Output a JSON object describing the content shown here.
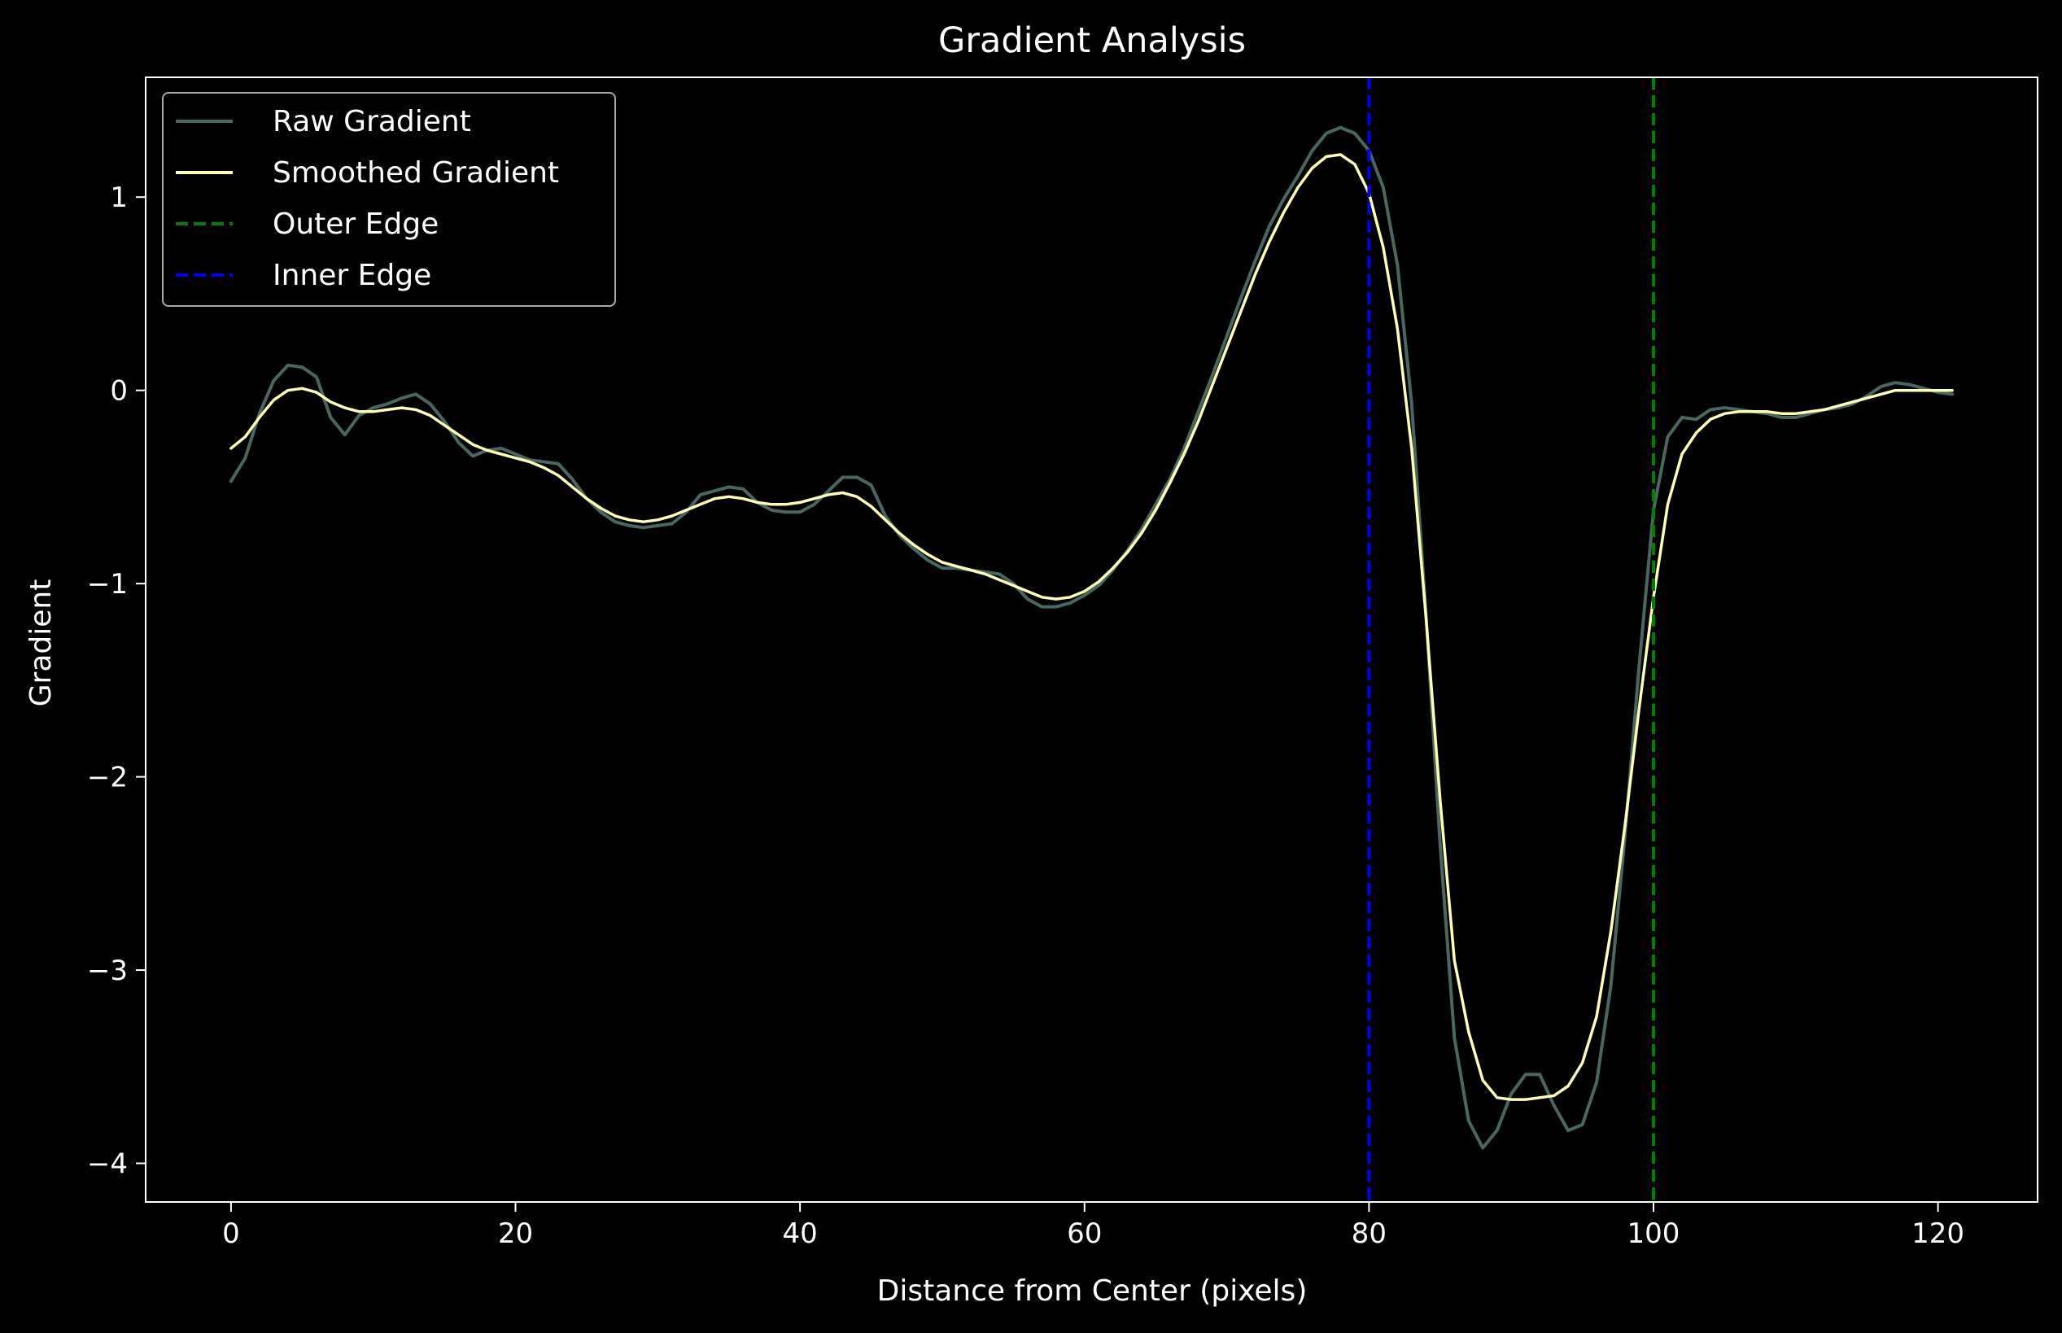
{
  "chart_data": {
    "type": "line",
    "title": "Gradient Analysis",
    "xlabel": "Distance from Center (pixels)",
    "ylabel": "Gradient",
    "xlim": [
      -6,
      127
    ],
    "ylim": [
      -4.2,
      1.62
    ],
    "xticks": [
      0,
      20,
      40,
      60,
      80,
      100,
      120
    ],
    "yticks": [
      1,
      0,
      -1,
      -2,
      -3,
      -4
    ],
    "ytick_labels": [
      "1",
      "0",
      "−1",
      "−2",
      "−3",
      "−4"
    ],
    "grid": false,
    "legend_position": "top-left",
    "background_color": "#000000",
    "x": [
      0,
      1,
      2,
      3,
      4,
      5,
      6,
      7,
      8,
      9,
      10,
      11,
      12,
      13,
      14,
      15,
      16,
      17,
      18,
      19,
      20,
      21,
      22,
      23,
      24,
      25,
      26,
      27,
      28,
      29,
      30,
      31,
      32,
      33,
      34,
      35,
      36,
      37,
      38,
      39,
      40,
      41,
      42,
      43,
      44,
      45,
      46,
      47,
      48,
      49,
      50,
      51,
      52,
      53,
      54,
      55,
      56,
      57,
      58,
      59,
      60,
      61,
      62,
      63,
      64,
      65,
      66,
      67,
      68,
      69,
      70,
      71,
      72,
      73,
      74,
      75,
      76,
      77,
      78,
      79,
      80,
      81,
      82,
      83,
      84,
      85,
      86,
      87,
      88,
      89,
      90,
      91,
      92,
      93,
      94,
      95,
      96,
      97,
      98,
      99,
      100,
      101,
      102,
      103,
      104,
      105,
      106,
      107,
      108,
      109,
      110,
      111,
      112,
      113,
      114,
      115,
      116,
      117,
      118,
      119,
      120,
      121
    ],
    "series": [
      {
        "name": "Raw Gradient",
        "color": "#4a6660",
        "style": "solid",
        "values": [
          -0.47,
          -0.35,
          -0.12,
          0.05,
          0.13,
          0.12,
          0.07,
          -0.14,
          -0.23,
          -0.13,
          -0.09,
          -0.07,
          -0.04,
          -0.02,
          -0.07,
          -0.16,
          -0.27,
          -0.34,
          -0.31,
          -0.3,
          -0.33,
          -0.36,
          -0.37,
          -0.38,
          -0.46,
          -0.56,
          -0.63,
          -0.68,
          -0.7,
          -0.71,
          -0.7,
          -0.69,
          -0.63,
          -0.54,
          -0.52,
          -0.5,
          -0.51,
          -0.58,
          -0.62,
          -0.63,
          -0.63,
          -0.59,
          -0.52,
          -0.45,
          -0.45,
          -0.49,
          -0.65,
          -0.75,
          -0.82,
          -0.88,
          -0.92,
          -0.92,
          -0.93,
          -0.94,
          -0.95,
          -1.0,
          -1.08,
          -1.12,
          -1.12,
          -1.1,
          -1.06,
          -1.01,
          -0.93,
          -0.83,
          -0.72,
          -0.59,
          -0.46,
          -0.3,
          -0.11,
          0.08,
          0.28,
          0.48,
          0.67,
          0.85,
          0.99,
          1.11,
          1.24,
          1.33,
          1.36,
          1.33,
          1.24,
          1.05,
          0.65,
          -0.07,
          -1.15,
          -2.35,
          -3.35,
          -3.78,
          -3.92,
          -3.83,
          -3.64,
          -3.54,
          -3.54,
          -3.7,
          -3.83,
          -3.8,
          -3.58,
          -3.08,
          -2.3,
          -1.42,
          -0.62,
          -0.24,
          -0.14,
          -0.15,
          -0.1,
          -0.09,
          -0.1,
          -0.11,
          -0.12,
          -0.14,
          -0.14,
          -0.12,
          -0.1,
          -0.09,
          -0.07,
          -0.03,
          0.02,
          0.04,
          0.03,
          0.01,
          -0.01,
          -0.02
        ]
      },
      {
        "name": "Smoothed Gradient",
        "color": "#ffffb3",
        "style": "solid",
        "values": [
          -0.3,
          -0.24,
          -0.14,
          -0.05,
          0.0,
          0.01,
          -0.01,
          -0.06,
          -0.09,
          -0.11,
          -0.11,
          -0.1,
          -0.09,
          -0.1,
          -0.13,
          -0.18,
          -0.23,
          -0.28,
          -0.31,
          -0.33,
          -0.35,
          -0.37,
          -0.4,
          -0.44,
          -0.5,
          -0.56,
          -0.61,
          -0.65,
          -0.67,
          -0.68,
          -0.67,
          -0.65,
          -0.62,
          -0.59,
          -0.56,
          -0.55,
          -0.56,
          -0.58,
          -0.59,
          -0.59,
          -0.58,
          -0.56,
          -0.54,
          -0.53,
          -0.55,
          -0.6,
          -0.67,
          -0.74,
          -0.8,
          -0.85,
          -0.89,
          -0.91,
          -0.93,
          -0.95,
          -0.98,
          -1.01,
          -1.04,
          -1.07,
          -1.08,
          -1.07,
          -1.04,
          -0.99,
          -0.92,
          -0.84,
          -0.74,
          -0.62,
          -0.48,
          -0.33,
          -0.16,
          0.03,
          0.22,
          0.41,
          0.6,
          0.77,
          0.92,
          1.05,
          1.15,
          1.21,
          1.22,
          1.17,
          1.02,
          0.74,
          0.32,
          -0.3,
          -1.17,
          -2.12,
          -2.95,
          -3.32,
          -3.57,
          -3.66,
          -3.67,
          -3.67,
          -3.66,
          -3.65,
          -3.6,
          -3.48,
          -3.24,
          -2.8,
          -2.25,
          -1.64,
          -1.07,
          -0.59,
          -0.33,
          -0.22,
          -0.15,
          -0.12,
          -0.11,
          -0.11,
          -0.11,
          -0.12,
          -0.12,
          -0.11,
          -0.1,
          -0.08,
          -0.06,
          -0.04,
          -0.02,
          0.0,
          0.0,
          0.0,
          0.0,
          0.0
        ]
      }
    ],
    "vlines": [
      {
        "name": "Outer Edge",
        "x": 100,
        "color": "#008000",
        "style": "dashed"
      },
      {
        "name": "Inner Edge",
        "x": 80,
        "color": "#0000ff",
        "style": "dashed"
      }
    ],
    "legend": [
      {
        "label": "Raw Gradient",
        "color": "#4a6660",
        "style": "solid"
      },
      {
        "label": "Smoothed Gradient",
        "color": "#ffffb3",
        "style": "solid"
      },
      {
        "label": "Outer Edge",
        "color": "#008000",
        "style": "dashed"
      },
      {
        "label": "Inner Edge",
        "color": "#0000ff",
        "style": "dashed"
      }
    ]
  }
}
